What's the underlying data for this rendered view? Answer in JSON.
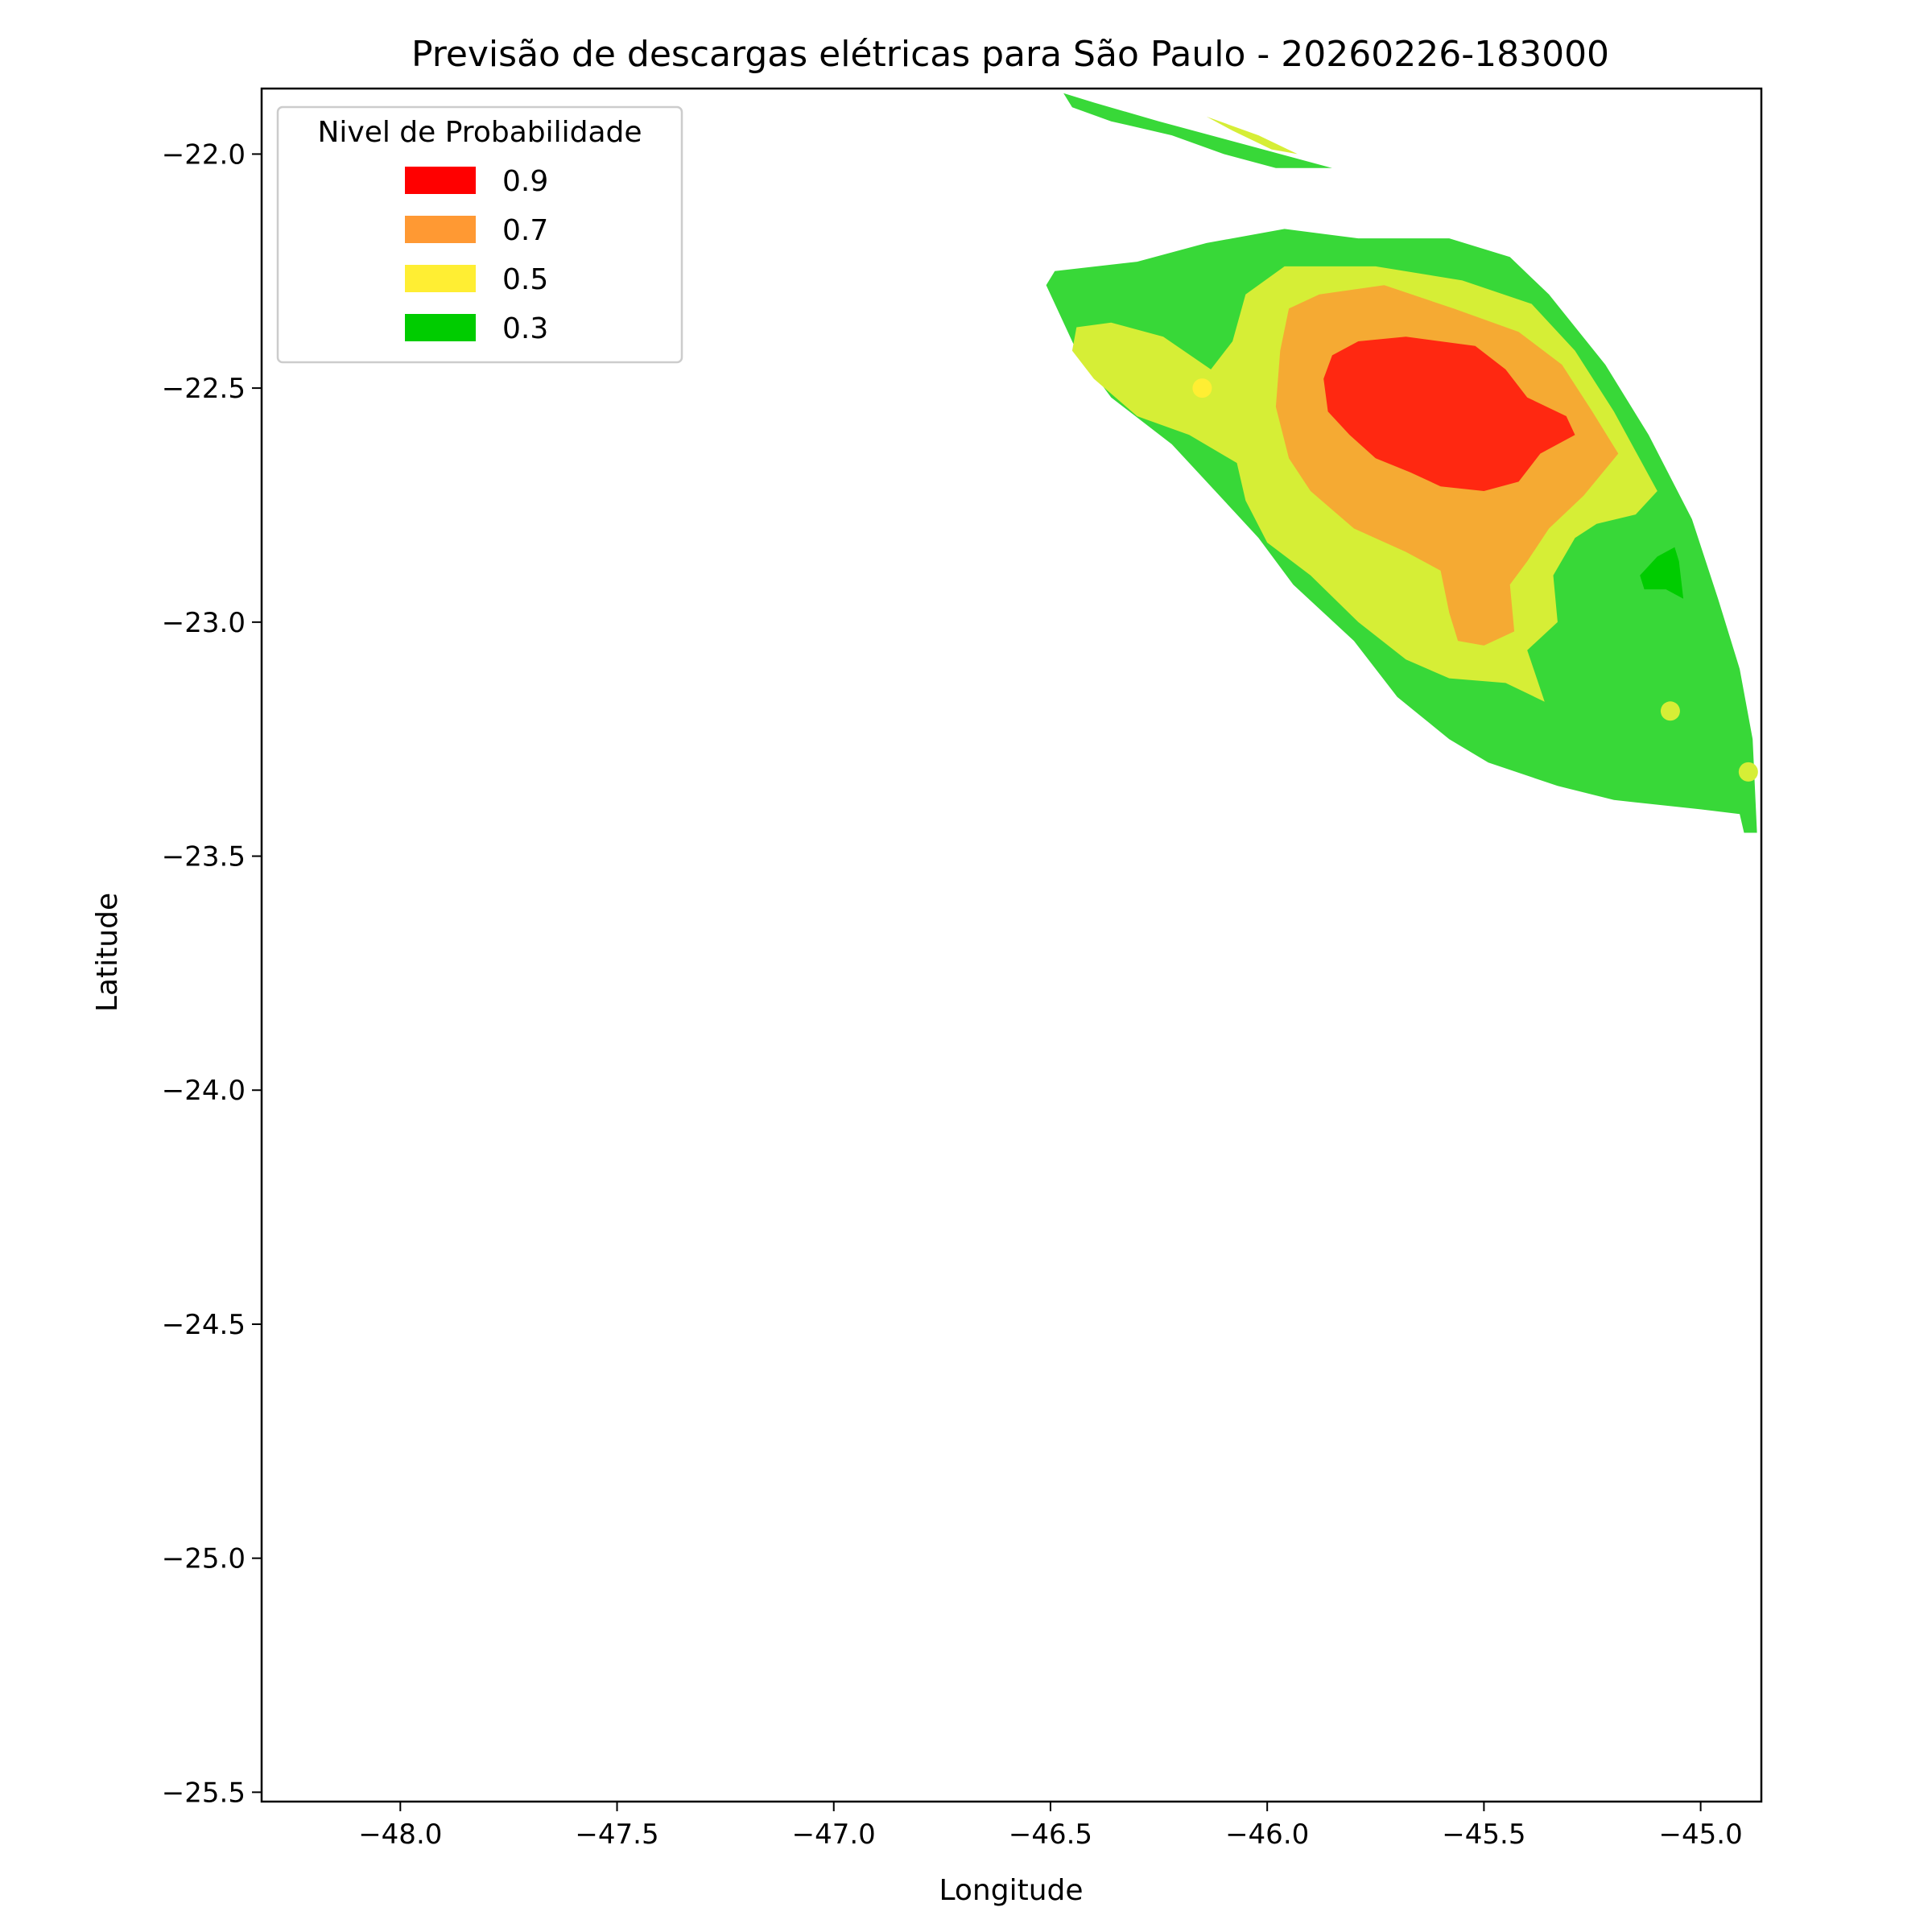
{
  "chart_data": {
    "type": "contour",
    "title": "Previsão de descargas elétricas para São Paulo - 20260226-183000",
    "xlabel": "Longitude",
    "ylabel": "Latitude",
    "xlim": [
      -48.32,
      -44.86
    ],
    "ylim": [
      -25.52,
      -21.86
    ],
    "xticks": [
      -48.0,
      -47.5,
      -47.0,
      -46.5,
      -46.0,
      -45.5,
      -45.0
    ],
    "xtick_labels": [
      "−48.0",
      "−47.5",
      "−47.0",
      "−46.5",
      "−46.0",
      "−45.5",
      "−45.0"
    ],
    "yticks": [
      -22.0,
      -22.5,
      -23.0,
      -23.5,
      -24.0,
      -24.5,
      -25.0,
      -25.5
    ],
    "ytick_labels": [
      "−22.0",
      "−22.5",
      "−23.0",
      "−23.5",
      "−24.0",
      "−24.5",
      "−25.0",
      "−25.5"
    ],
    "grid": false,
    "legend": {
      "title": "Nivel de Probabilidade",
      "placement": "upper-left",
      "entries": [
        {
          "label": "0.9",
          "color": "#ff0000"
        },
        {
          "label": "0.7",
          "color": "#ff9933"
        },
        {
          "label": "0.5",
          "color": "#ffee33"
        },
        {
          "label": "0.3",
          "color": "#00cc00"
        }
      ]
    },
    "regions": [
      {
        "name": "north-band-0.3",
        "level": "0.3",
        "color": "#38d838",
        "lonlat": [
          [
            -46.47,
            -21.87
          ],
          [
            -46.4,
            -21.89
          ],
          [
            -46.25,
            -21.93
          ],
          [
            -46.05,
            -21.98
          ],
          [
            -45.85,
            -22.03
          ],
          [
            -45.98,
            -22.03
          ],
          [
            -46.1,
            -22.0
          ],
          [
            -46.22,
            -21.96
          ],
          [
            -46.36,
            -21.93
          ],
          [
            -46.45,
            -21.9
          ]
        ]
      },
      {
        "name": "north-band-0.5",
        "level": "0.5",
        "color": "#d6ee36",
        "lonlat": [
          [
            -46.14,
            -21.92
          ],
          [
            -46.02,
            -21.96
          ],
          [
            -45.93,
            -22.0
          ],
          [
            -45.99,
            -21.99
          ],
          [
            -46.08,
            -21.95
          ]
        ]
      },
      {
        "name": "main-region-0.3",
        "level": "0.3",
        "color": "#38d838",
        "lonlat": [
          [
            -46.51,
            -22.28
          ],
          [
            -46.49,
            -22.25
          ],
          [
            -46.3,
            -22.23
          ],
          [
            -46.14,
            -22.19
          ],
          [
            -45.96,
            -22.16
          ],
          [
            -45.79,
            -22.18
          ],
          [
            -45.58,
            -22.18
          ],
          [
            -45.44,
            -22.22
          ],
          [
            -45.35,
            -22.3
          ],
          [
            -45.22,
            -22.45
          ],
          [
            -45.12,
            -22.6
          ],
          [
            -45.02,
            -22.78
          ],
          [
            -44.96,
            -22.95
          ],
          [
            -44.91,
            -23.1
          ],
          [
            -44.88,
            -23.25
          ],
          [
            -44.87,
            -23.45
          ],
          [
            -44.9,
            -23.45
          ],
          [
            -44.91,
            -23.41
          ],
          [
            -45.0,
            -23.4
          ],
          [
            -45.2,
            -23.38
          ],
          [
            -45.33,
            -23.35
          ],
          [
            -45.49,
            -23.3
          ],
          [
            -45.58,
            -23.25
          ],
          [
            -45.7,
            -23.16
          ],
          [
            -45.8,
            -23.04
          ],
          [
            -45.94,
            -22.92
          ],
          [
            -46.02,
            -22.82
          ],
          [
            -46.12,
            -22.72
          ],
          [
            -46.22,
            -22.62
          ],
          [
            -46.36,
            -22.52
          ],
          [
            -46.44,
            -22.42
          ]
        ]
      },
      {
        "name": "main-region-0.5",
        "level": "0.5",
        "color": "#d6ee36",
        "lonlat": [
          [
            -46.44,
            -22.37
          ],
          [
            -46.36,
            -22.36
          ],
          [
            -46.24,
            -22.39
          ],
          [
            -46.13,
            -22.46
          ],
          [
            -46.08,
            -22.4
          ],
          [
            -46.05,
            -22.3
          ],
          [
            -45.96,
            -22.24
          ],
          [
            -45.75,
            -22.24
          ],
          [
            -45.55,
            -22.27
          ],
          [
            -45.39,
            -22.32
          ],
          [
            -45.29,
            -22.42
          ],
          [
            -45.2,
            -22.55
          ],
          [
            -45.1,
            -22.72
          ],
          [
            -45.15,
            -22.77
          ],
          [
            -45.24,
            -22.79
          ],
          [
            -45.29,
            -22.82
          ],
          [
            -45.34,
            -22.9
          ],
          [
            -45.33,
            -23.0
          ],
          [
            -45.4,
            -23.06
          ],
          [
            -45.36,
            -23.17
          ],
          [
            -45.45,
            -23.13
          ],
          [
            -45.58,
            -23.12
          ],
          [
            -45.68,
            -23.08
          ],
          [
            -45.79,
            -23.0
          ],
          [
            -45.9,
            -22.9
          ],
          [
            -46.0,
            -22.83
          ],
          [
            -46.05,
            -22.74
          ],
          [
            -46.07,
            -22.66
          ],
          [
            -46.18,
            -22.6
          ],
          [
            -46.3,
            -22.56
          ],
          [
            -46.4,
            -22.48
          ],
          [
            -46.45,
            -22.42
          ]
        ]
      },
      {
        "name": "main-region-0.7",
        "level": "0.7",
        "color": "#f5aa33",
        "lonlat": [
          [
            -45.95,
            -22.33
          ],
          [
            -45.88,
            -22.3
          ],
          [
            -45.73,
            -22.28
          ],
          [
            -45.57,
            -22.33
          ],
          [
            -45.42,
            -22.38
          ],
          [
            -45.32,
            -22.45
          ],
          [
            -45.25,
            -22.55
          ],
          [
            -45.19,
            -22.64
          ],
          [
            -45.27,
            -22.73
          ],
          [
            -45.35,
            -22.8
          ],
          [
            -45.4,
            -22.87
          ],
          [
            -45.44,
            -22.92
          ],
          [
            -45.43,
            -23.02
          ],
          [
            -45.5,
            -23.05
          ],
          [
            -45.56,
            -23.04
          ],
          [
            -45.58,
            -22.98
          ],
          [
            -45.6,
            -22.89
          ],
          [
            -45.68,
            -22.85
          ],
          [
            -45.8,
            -22.8
          ],
          [
            -45.9,
            -22.72
          ],
          [
            -45.95,
            -22.65
          ],
          [
            -45.98,
            -22.54
          ],
          [
            -45.97,
            -22.42
          ]
        ]
      },
      {
        "name": "main-region-0.9",
        "level": "0.9",
        "color": "#ff2811",
        "lonlat": [
          [
            -45.85,
            -22.43
          ],
          [
            -45.79,
            -22.4
          ],
          [
            -45.68,
            -22.39
          ],
          [
            -45.52,
            -22.41
          ],
          [
            -45.45,
            -22.46
          ],
          [
            -45.4,
            -22.52
          ],
          [
            -45.31,
            -22.56
          ],
          [
            -45.29,
            -22.6
          ],
          [
            -45.37,
            -22.64
          ],
          [
            -45.42,
            -22.7
          ],
          [
            -45.5,
            -22.72
          ],
          [
            -45.6,
            -22.71
          ],
          [
            -45.67,
            -22.68
          ],
          [
            -45.75,
            -22.65
          ],
          [
            -45.81,
            -22.6
          ],
          [
            -45.86,
            -22.55
          ],
          [
            -45.87,
            -22.48
          ]
        ]
      },
      {
        "name": "east-spot-0.3-dark",
        "level": "0.3",
        "color": "#00cc00",
        "lonlat": [
          [
            -45.1,
            -22.86
          ],
          [
            -45.06,
            -22.84
          ],
          [
            -45.05,
            -22.87
          ],
          [
            -45.04,
            -22.95
          ],
          [
            -45.08,
            -22.93
          ],
          [
            -45.13,
            -22.93
          ],
          [
            -45.14,
            -22.9
          ]
        ]
      }
    ],
    "markers": [
      {
        "lon": -46.15,
        "lat": -22.5,
        "level": "0.5",
        "color": "#ffee33"
      },
      {
        "lon": -45.07,
        "lat": -23.19,
        "level": "0.5",
        "color": "#d6ee36"
      },
      {
        "lon": -44.89,
        "lat": -23.32,
        "level": "0.5",
        "color": "#d6ee36"
      }
    ]
  }
}
